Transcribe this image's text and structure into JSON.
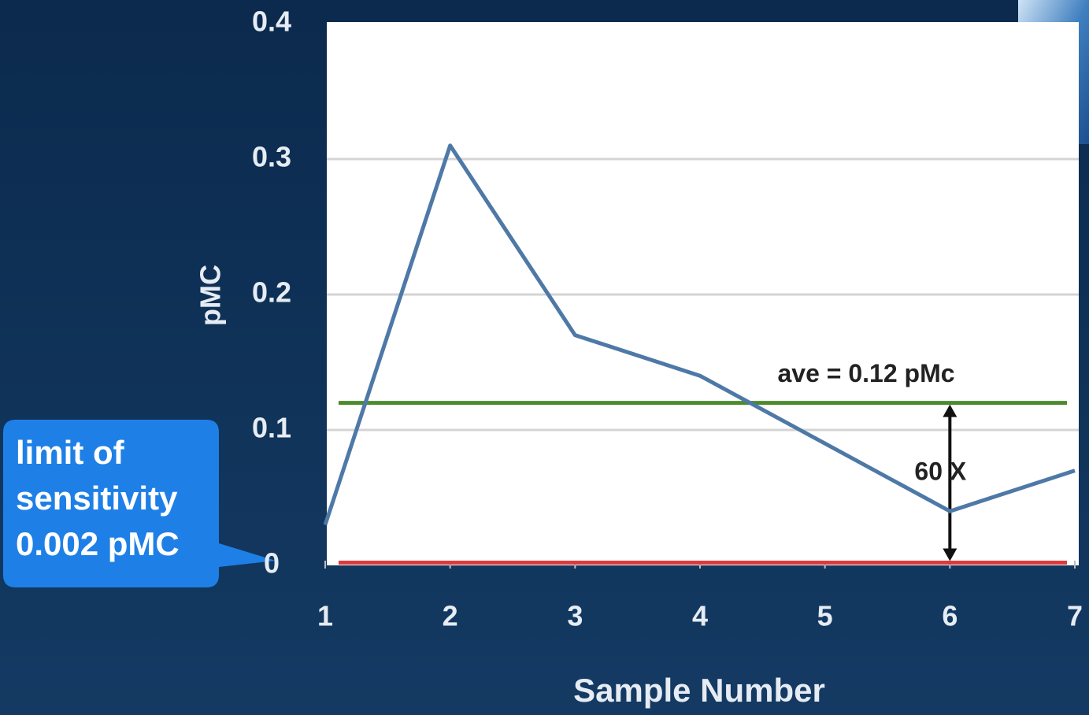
{
  "chart_data": {
    "type": "line",
    "x_label": "Sample Number",
    "y_label": "pMC",
    "x": [
      1,
      2,
      3,
      4,
      5,
      6,
      7
    ],
    "values": [
      0.03,
      0.31,
      0.17,
      0.14,
      0.09,
      0.04,
      0.07
    ],
    "color": "#4e79a7",
    "xlim": [
      1,
      7
    ],
    "xticks": [
      1,
      2,
      3,
      4,
      5,
      6,
      7
    ],
    "ylim": [
      0,
      0.4
    ],
    "yticks": [
      0,
      0.1,
      0.2,
      0.3,
      0.4
    ],
    "grid": true,
    "reference_lines": [
      {
        "value": 0.12,
        "color": "#4c8a2e",
        "label": "ave = 0.12 pMc"
      },
      {
        "value": 0.002,
        "color": "#e0393a"
      }
    ],
    "ratio_label": "60 X",
    "callout": [
      "limit of",
      "sensitivity",
      "0.002 pMC"
    ]
  }
}
